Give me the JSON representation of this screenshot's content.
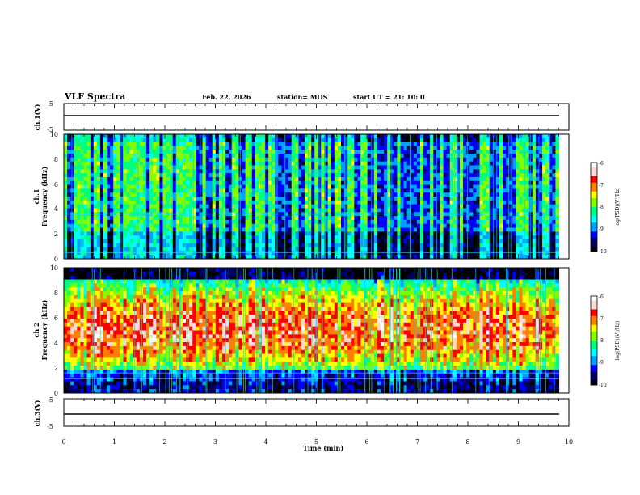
{
  "header": {
    "title": "VLF Spectra",
    "date": "Feb. 22, 2026",
    "station": "station= MOS",
    "start": "start  UT =   21: 10: 0"
  },
  "colors": {
    "colormap": [
      "#000000",
      "#000060",
      "#0000ff",
      "#00a0ff",
      "#00ffff",
      "#00ff80",
      "#80ff00",
      "#ffff00",
      "#ff8000",
      "#ff0000",
      "#ffd8d8",
      "#ffffff"
    ]
  },
  "chart_data": [
    {
      "type": "line",
      "name": "ch1-waveform",
      "ylabel": "ch.1(V)",
      "ylim": [
        -5,
        5
      ],
      "yticks": [
        "5",
        "-5"
      ],
      "x": [
        0,
        9.8
      ],
      "y": [
        0,
        0
      ]
    },
    {
      "type": "heatmap",
      "name": "ch1-spectrogram",
      "ylabel": "ch.1\nFrequency (kHz)",
      "ylabel_line1": "ch.1",
      "ylabel_line2": "Frequency (kHz)",
      "ylim": [
        0,
        10
      ],
      "yticks": [
        "0",
        "2",
        "4",
        "6",
        "8",
        "10"
      ],
      "data_xmax_min": 9.8,
      "colorbar": {
        "label": "log(PSD)(V²/Hz)",
        "range": [
          -10,
          -6
        ],
        "ticks": [
          "-6",
          "-7",
          "-8",
          "-9",
          "-10"
        ]
      }
    },
    {
      "type": "heatmap",
      "name": "ch2-spectrogram",
      "ylabel": "ch.2\nFrequency (kHz)",
      "ylabel_line1": "ch.2",
      "ylabel_line2": "Frequency (kHz)",
      "ylim": [
        0,
        10
      ],
      "yticks": [
        "0",
        "2",
        "4",
        "6",
        "8",
        "10"
      ],
      "data_xmax_min": 9.8,
      "colorbar": {
        "label": "log(PSD)(V²/Hz)",
        "range": [
          -10,
          -6
        ],
        "ticks": [
          "-6",
          "-7",
          "-8",
          "-9",
          "-10"
        ]
      }
    },
    {
      "type": "line",
      "name": "ch3-waveform",
      "ylabel": "ch.3(V)",
      "ylim": [
        -5,
        5
      ],
      "yticks": [
        "5",
        "-5"
      ],
      "x": [
        0,
        9.8
      ],
      "y": [
        0,
        0
      ]
    }
  ],
  "xaxis": {
    "label": "Time (min)",
    "range": [
      0,
      10
    ],
    "ticks": [
      "0",
      "1",
      "2",
      "3",
      "4",
      "5",
      "6",
      "7",
      "8",
      "9",
      "10"
    ]
  }
}
